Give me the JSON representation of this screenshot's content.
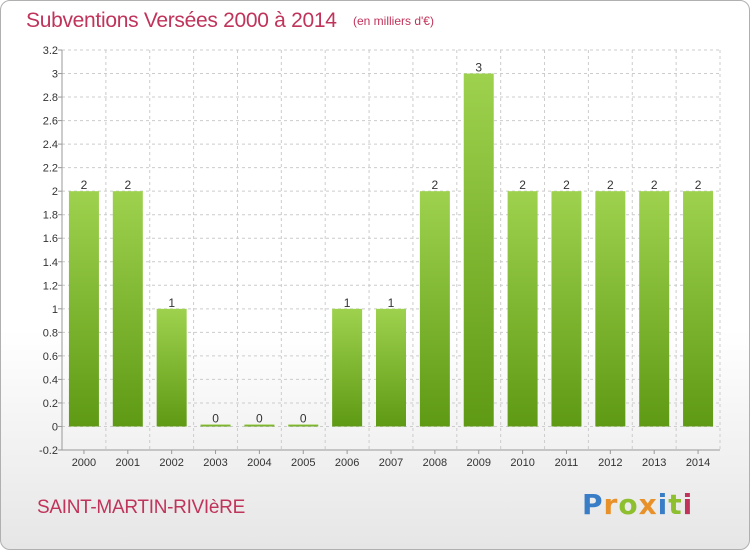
{
  "header": {
    "title": "Subventions Versées 2000 à 2014",
    "subtitle": "(en milliers d'€)"
  },
  "footer": {
    "commune": "SAINT-MARTIN-RIVIèRE",
    "logo_letters": [
      "P",
      "r",
      "o",
      "x",
      "i",
      "t",
      "i"
    ],
    "logo_colors": [
      "#3a7dc7",
      "#e8912a",
      "#8dbf2e",
      "#e8912a",
      "#3a7dc7",
      "#8dbf2e",
      "#c0335a"
    ]
  },
  "colors": {
    "bar_top": "#9ed24e",
    "bar_bottom": "#5f9a14",
    "grid": "#cccccc",
    "axis": "#999999",
    "title": "#c0335a"
  },
  "chart_data": {
    "type": "bar",
    "categories": [
      "2000",
      "2001",
      "2002",
      "2003",
      "2004",
      "2005",
      "2006",
      "2007",
      "2008",
      "2009",
      "2010",
      "2011",
      "2012",
      "2013",
      "2014"
    ],
    "values": [
      2,
      2,
      1,
      0,
      0,
      0,
      1,
      1,
      2,
      3,
      2,
      2,
      2,
      2,
      2
    ],
    "data_labels": [
      "2",
      "2",
      "1",
      "0",
      "0",
      "0",
      "1",
      "1",
      "2",
      "3",
      "2",
      "2",
      "2",
      "2",
      "2"
    ],
    "ylim": [
      -0.2,
      3.2
    ],
    "yticks": [
      -0.2,
      0,
      0.2,
      0.4,
      0.6,
      0.8,
      1,
      1.2,
      1.4,
      1.6,
      1.8,
      2,
      2.2,
      2.4,
      2.6,
      2.8,
      3,
      3.2
    ],
    "ytick_labels": [
      "-0.2",
      "0",
      "0.2",
      "0.4",
      "0.6",
      "0.8",
      "1",
      "1.2",
      "1.4",
      "1.6",
      "1.8",
      "2",
      "2.2",
      "2.4",
      "2.6",
      "2.8",
      "3",
      "3.2"
    ],
    "grid": "horizontal dashed",
    "legend": "none"
  }
}
